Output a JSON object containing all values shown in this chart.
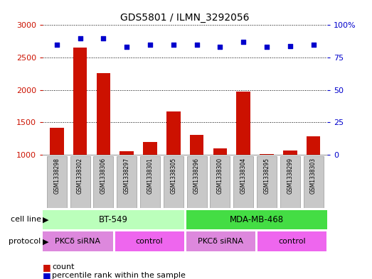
{
  "title": "GDS5801 / ILMN_3292056",
  "samples": [
    "GSM1338298",
    "GSM1338302",
    "GSM1338306",
    "GSM1338297",
    "GSM1338301",
    "GSM1338305",
    "GSM1338296",
    "GSM1338300",
    "GSM1338304",
    "GSM1338295",
    "GSM1338299",
    "GSM1338303"
  ],
  "counts": [
    1420,
    2650,
    2260,
    1060,
    1200,
    1670,
    1310,
    1100,
    1970,
    1010,
    1065,
    1290
  ],
  "percentile_ranks": [
    85,
    90,
    90,
    83,
    85,
    85,
    85,
    83,
    87,
    83,
    84,
    85
  ],
  "ylim_left": [
    1000,
    3000
  ],
  "ylim_right": [
    0,
    100
  ],
  "yticks_left": [
    1000,
    1500,
    2000,
    2500,
    3000
  ],
  "yticks_right": [
    0,
    25,
    50,
    75,
    100
  ],
  "bar_color": "#cc1100",
  "dot_color": "#0000cc",
  "sample_box_color": "#c8c8c8",
  "sample_box_border": "#999999",
  "cell_line_bt549_color": "#bbffbb",
  "cell_line_mda_color": "#44dd44",
  "protocol_pkcd_color": "#dd88dd",
  "protocol_control_color": "#ee66ee",
  "cell_line_row_label": "cell line",
  "protocol_row_label": "protocol",
  "legend_count_label": "count",
  "legend_percentile_label": "percentile rank within the sample",
  "background_color": "#ffffff",
  "right_axis_top_label": "100%"
}
